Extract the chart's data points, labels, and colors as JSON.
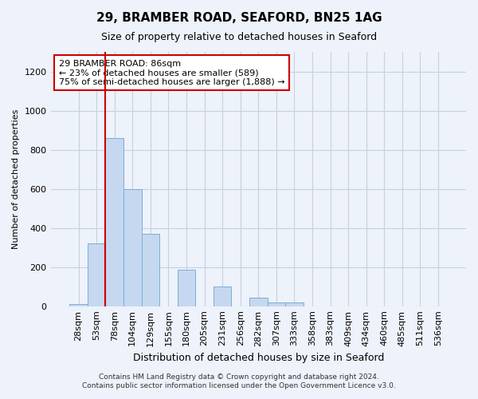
{
  "title1": "29, BRAMBER ROAD, SEAFORD, BN25 1AG",
  "title2": "Size of property relative to detached houses in Seaford",
  "xlabel": "Distribution of detached houses by size in Seaford",
  "ylabel": "Number of detached properties",
  "bar_labels": [
    "28sqm",
    "53sqm",
    "78sqm",
    "104sqm",
    "129sqm",
    "155sqm",
    "180sqm",
    "205sqm",
    "231sqm",
    "256sqm",
    "282sqm",
    "307sqm",
    "333sqm",
    "358sqm",
    "383sqm",
    "409sqm",
    "434sqm",
    "460sqm",
    "485sqm",
    "511sqm",
    "536sqm"
  ],
  "bar_values": [
    10,
    320,
    860,
    600,
    370,
    0,
    185,
    0,
    100,
    0,
    45,
    20,
    20,
    0,
    0,
    0,
    0,
    0,
    0,
    0,
    0
  ],
  "bar_color": "#c5d8f0",
  "bar_edge_color": "#7aadd4",
  "vline_x_index": 2,
  "vline_color": "#cc0000",
  "annotation_text": "29 BRAMBER ROAD: 86sqm\n← 23% of detached houses are smaller (589)\n75% of semi-detached houses are larger (1,888) →",
  "annotation_box_facecolor": "white",
  "annotation_box_edgecolor": "#cc0000",
  "ylim": [
    0,
    1300
  ],
  "yticks": [
    0,
    200,
    400,
    600,
    800,
    1000,
    1200
  ],
  "grid_color": "#c8d0e0",
  "bg_color": "#eef2fa",
  "title1_fontsize": 11,
  "title2_fontsize": 9,
  "ylabel_fontsize": 8,
  "xlabel_fontsize": 9,
  "tick_fontsize": 8,
  "annot_fontsize": 8,
  "footnote1": "Contains HM Land Registry data © Crown copyright and database right 2024.",
  "footnote2": "Contains public sector information licensed under the Open Government Licence v3.0."
}
